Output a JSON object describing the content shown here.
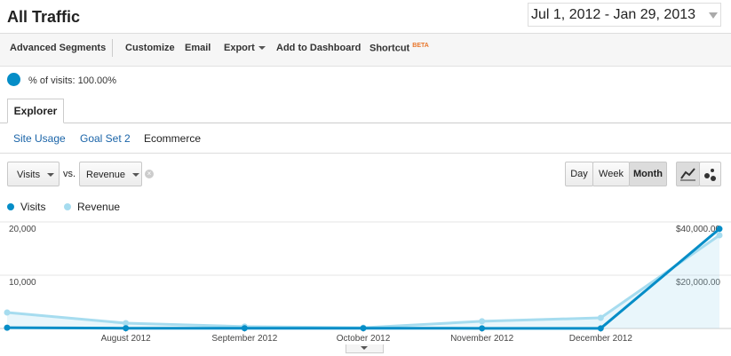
{
  "header": {
    "title": "All Traffic",
    "date_range": "Jul 1, 2012 - Jan 29, 2013"
  },
  "toolbar": {
    "items": [
      "Advanced Segments",
      "Customize",
      "Email",
      "Export",
      "Add to Dashboard",
      "Shortcut"
    ],
    "badge": "BETA"
  },
  "segment": {
    "label": "% of visits: 100.00%"
  },
  "tabs": [
    "Explorer"
  ],
  "subtabs": [
    "Site Usage",
    "Goal Set 2",
    "Ecommerce"
  ],
  "metric_selector": {
    "primary": "Visits",
    "separator": "vs.",
    "secondary": "Revenue"
  },
  "granularity": [
    "Day",
    "Week",
    "Month"
  ],
  "chart_data": {
    "type": "line",
    "categories": [
      null,
      "August 2012",
      "September 2012",
      "October 2012",
      "November 2012",
      "December 2012",
      null
    ],
    "series": [
      {
        "name": "Visits",
        "color": "#058dc7",
        "values": [
          150,
          50,
          50,
          50,
          30,
          30,
          18700
        ]
      },
      {
        "name": "Revenue",
        "color": "#a6dcef",
        "axis": "y2",
        "area": true,
        "values": [
          6000,
          2000,
          700,
          300,
          2700,
          4000,
          35000
        ]
      }
    ],
    "ylim": [
      0,
      20000
    ],
    "yticks": [
      {
        "value": 10000,
        "label": "10,000"
      },
      {
        "value": 20000,
        "label": "20,000"
      }
    ],
    "y2lim": [
      0,
      40000
    ],
    "y2ticks": [
      {
        "value": 20000,
        "label": "$20,000.00"
      },
      {
        "value": 40000,
        "label": "$40,000.00"
      }
    ],
    "grid": true
  }
}
